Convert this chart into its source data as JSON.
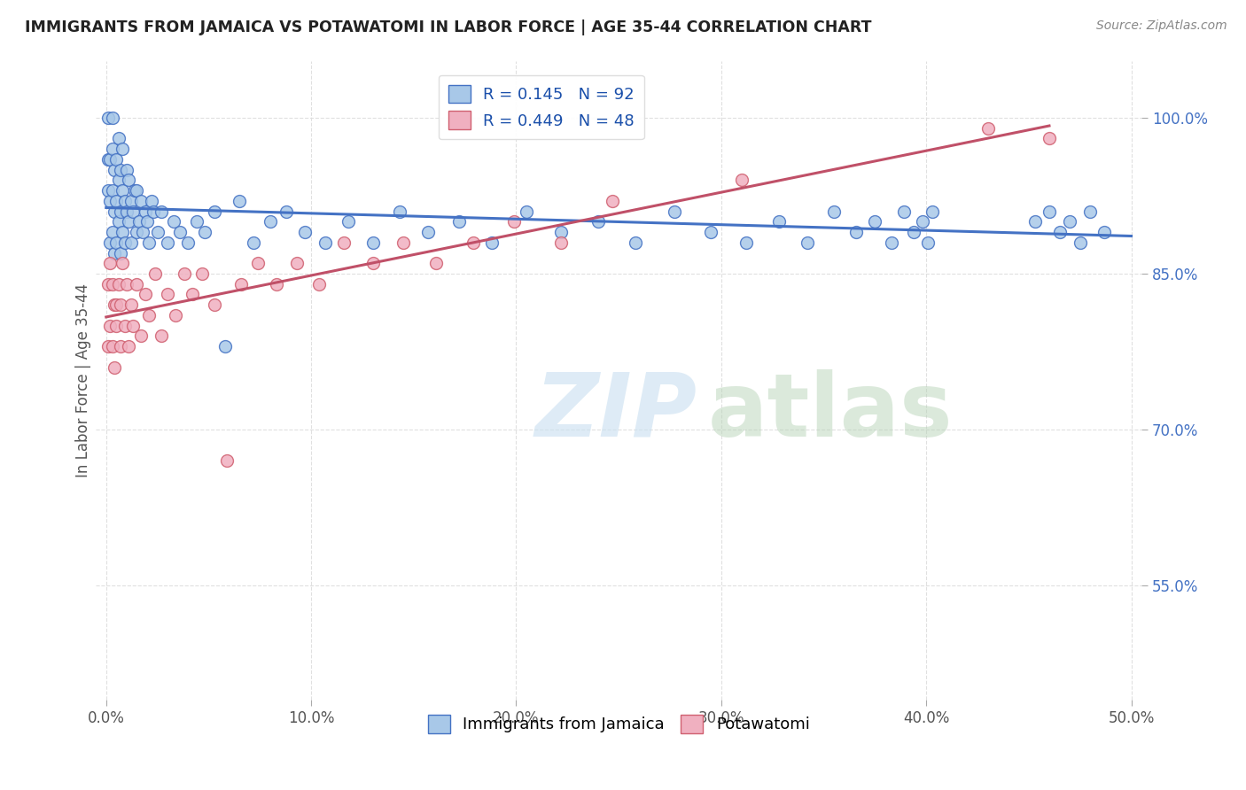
{
  "title": "IMMIGRANTS FROM JAMAICA VS POTAWATOMI IN LABOR FORCE | AGE 35-44 CORRELATION CHART",
  "source": "Source: ZipAtlas.com",
  "xlabel": "",
  "ylabel": "In Labor Force | Age 35-44",
  "xlim": [
    -0.005,
    0.505
  ],
  "ylim": [
    0.44,
    1.055
  ],
  "xticks": [
    0.0,
    0.1,
    0.2,
    0.3,
    0.4,
    0.5
  ],
  "xticklabels": [
    "0.0%",
    "10.0%",
    "20.0%",
    "30.0%",
    "40.0%",
    "50.0%"
  ],
  "yticks": [
    0.55,
    0.7,
    0.85,
    1.0
  ],
  "yticklabels": [
    "55.0%",
    "70.0%",
    "85.0%",
    "100.0%"
  ],
  "legend_jamaica": "Immigrants from Jamaica",
  "legend_potawatomi": "Potawatomi",
  "R_jamaica": 0.145,
  "N_jamaica": 92,
  "R_potawatomi": 0.449,
  "N_potawatomi": 48,
  "color_jamaica": "#a8c8e8",
  "color_potawatomi": "#f0b0c0",
  "line_color_jamaica": "#4472c4",
  "line_color_potawatomi": "#c0506080",
  "background_color": "#ffffff",
  "grid_color": "#dddddd",
  "title_color": "#222222",
  "axis_label_color": "#555555",
  "tick_label_color_y": "#4472c4",
  "tick_label_color_x": "#555555",
  "jamaica_x": [
    0.001,
    0.001,
    0.001,
    0.002,
    0.002,
    0.002,
    0.003,
    0.003,
    0.003,
    0.003,
    0.004,
    0.004,
    0.004,
    0.005,
    0.005,
    0.005,
    0.006,
    0.006,
    0.006,
    0.007,
    0.007,
    0.007,
    0.008,
    0.008,
    0.008,
    0.009,
    0.009,
    0.01,
    0.01,
    0.011,
    0.011,
    0.012,
    0.012,
    0.013,
    0.014,
    0.015,
    0.015,
    0.016,
    0.017,
    0.018,
    0.019,
    0.02,
    0.021,
    0.022,
    0.023,
    0.025,
    0.027,
    0.03,
    0.033,
    0.036,
    0.04,
    0.044,
    0.048,
    0.053,
    0.058,
    0.065,
    0.072,
    0.08,
    0.088,
    0.097,
    0.107,
    0.118,
    0.13,
    0.143,
    0.157,
    0.172,
    0.188,
    0.205,
    0.222,
    0.24,
    0.258,
    0.277,
    0.295,
    0.312,
    0.328,
    0.342,
    0.355,
    0.366,
    0.375,
    0.383,
    0.389,
    0.394,
    0.398,
    0.401,
    0.403,
    0.453,
    0.46,
    0.465,
    0.47,
    0.475,
    0.48,
    0.487
  ],
  "jamaica_y": [
    0.96,
    0.93,
    1.0,
    0.88,
    0.92,
    0.96,
    0.89,
    0.93,
    0.97,
    1.0,
    0.87,
    0.91,
    0.95,
    0.88,
    0.92,
    0.96,
    0.9,
    0.94,
    0.98,
    0.87,
    0.91,
    0.95,
    0.89,
    0.93,
    0.97,
    0.88,
    0.92,
    0.91,
    0.95,
    0.9,
    0.94,
    0.88,
    0.92,
    0.91,
    0.93,
    0.89,
    0.93,
    0.9,
    0.92,
    0.89,
    0.91,
    0.9,
    0.88,
    0.92,
    0.91,
    0.89,
    0.91,
    0.88,
    0.9,
    0.89,
    0.88,
    0.9,
    0.89,
    0.91,
    0.78,
    0.92,
    0.88,
    0.9,
    0.91,
    0.89,
    0.88,
    0.9,
    0.88,
    0.91,
    0.89,
    0.9,
    0.88,
    0.91,
    0.89,
    0.9,
    0.88,
    0.91,
    0.89,
    0.88,
    0.9,
    0.88,
    0.91,
    0.89,
    0.9,
    0.88,
    0.91,
    0.89,
    0.9,
    0.88,
    0.91,
    0.9,
    0.91,
    0.89,
    0.9,
    0.88,
    0.91,
    0.89
  ],
  "potawatomi_x": [
    0.001,
    0.001,
    0.002,
    0.002,
    0.003,
    0.003,
    0.004,
    0.004,
    0.005,
    0.005,
    0.006,
    0.007,
    0.007,
    0.008,
    0.009,
    0.01,
    0.011,
    0.012,
    0.013,
    0.015,
    0.017,
    0.019,
    0.021,
    0.024,
    0.027,
    0.03,
    0.034,
    0.038,
    0.042,
    0.047,
    0.053,
    0.059,
    0.066,
    0.074,
    0.083,
    0.093,
    0.104,
    0.116,
    0.13,
    0.145,
    0.161,
    0.179,
    0.199,
    0.222,
    0.247,
    0.31,
    0.43,
    0.46
  ],
  "potawatomi_y": [
    0.84,
    0.78,
    0.86,
    0.8,
    0.84,
    0.78,
    0.82,
    0.76,
    0.82,
    0.8,
    0.84,
    0.78,
    0.82,
    0.86,
    0.8,
    0.84,
    0.78,
    0.82,
    0.8,
    0.84,
    0.79,
    0.83,
    0.81,
    0.85,
    0.79,
    0.83,
    0.81,
    0.85,
    0.83,
    0.85,
    0.82,
    0.67,
    0.84,
    0.86,
    0.84,
    0.86,
    0.84,
    0.88,
    0.86,
    0.88,
    0.86,
    0.88,
    0.9,
    0.88,
    0.92,
    0.94,
    0.99,
    0.98
  ]
}
